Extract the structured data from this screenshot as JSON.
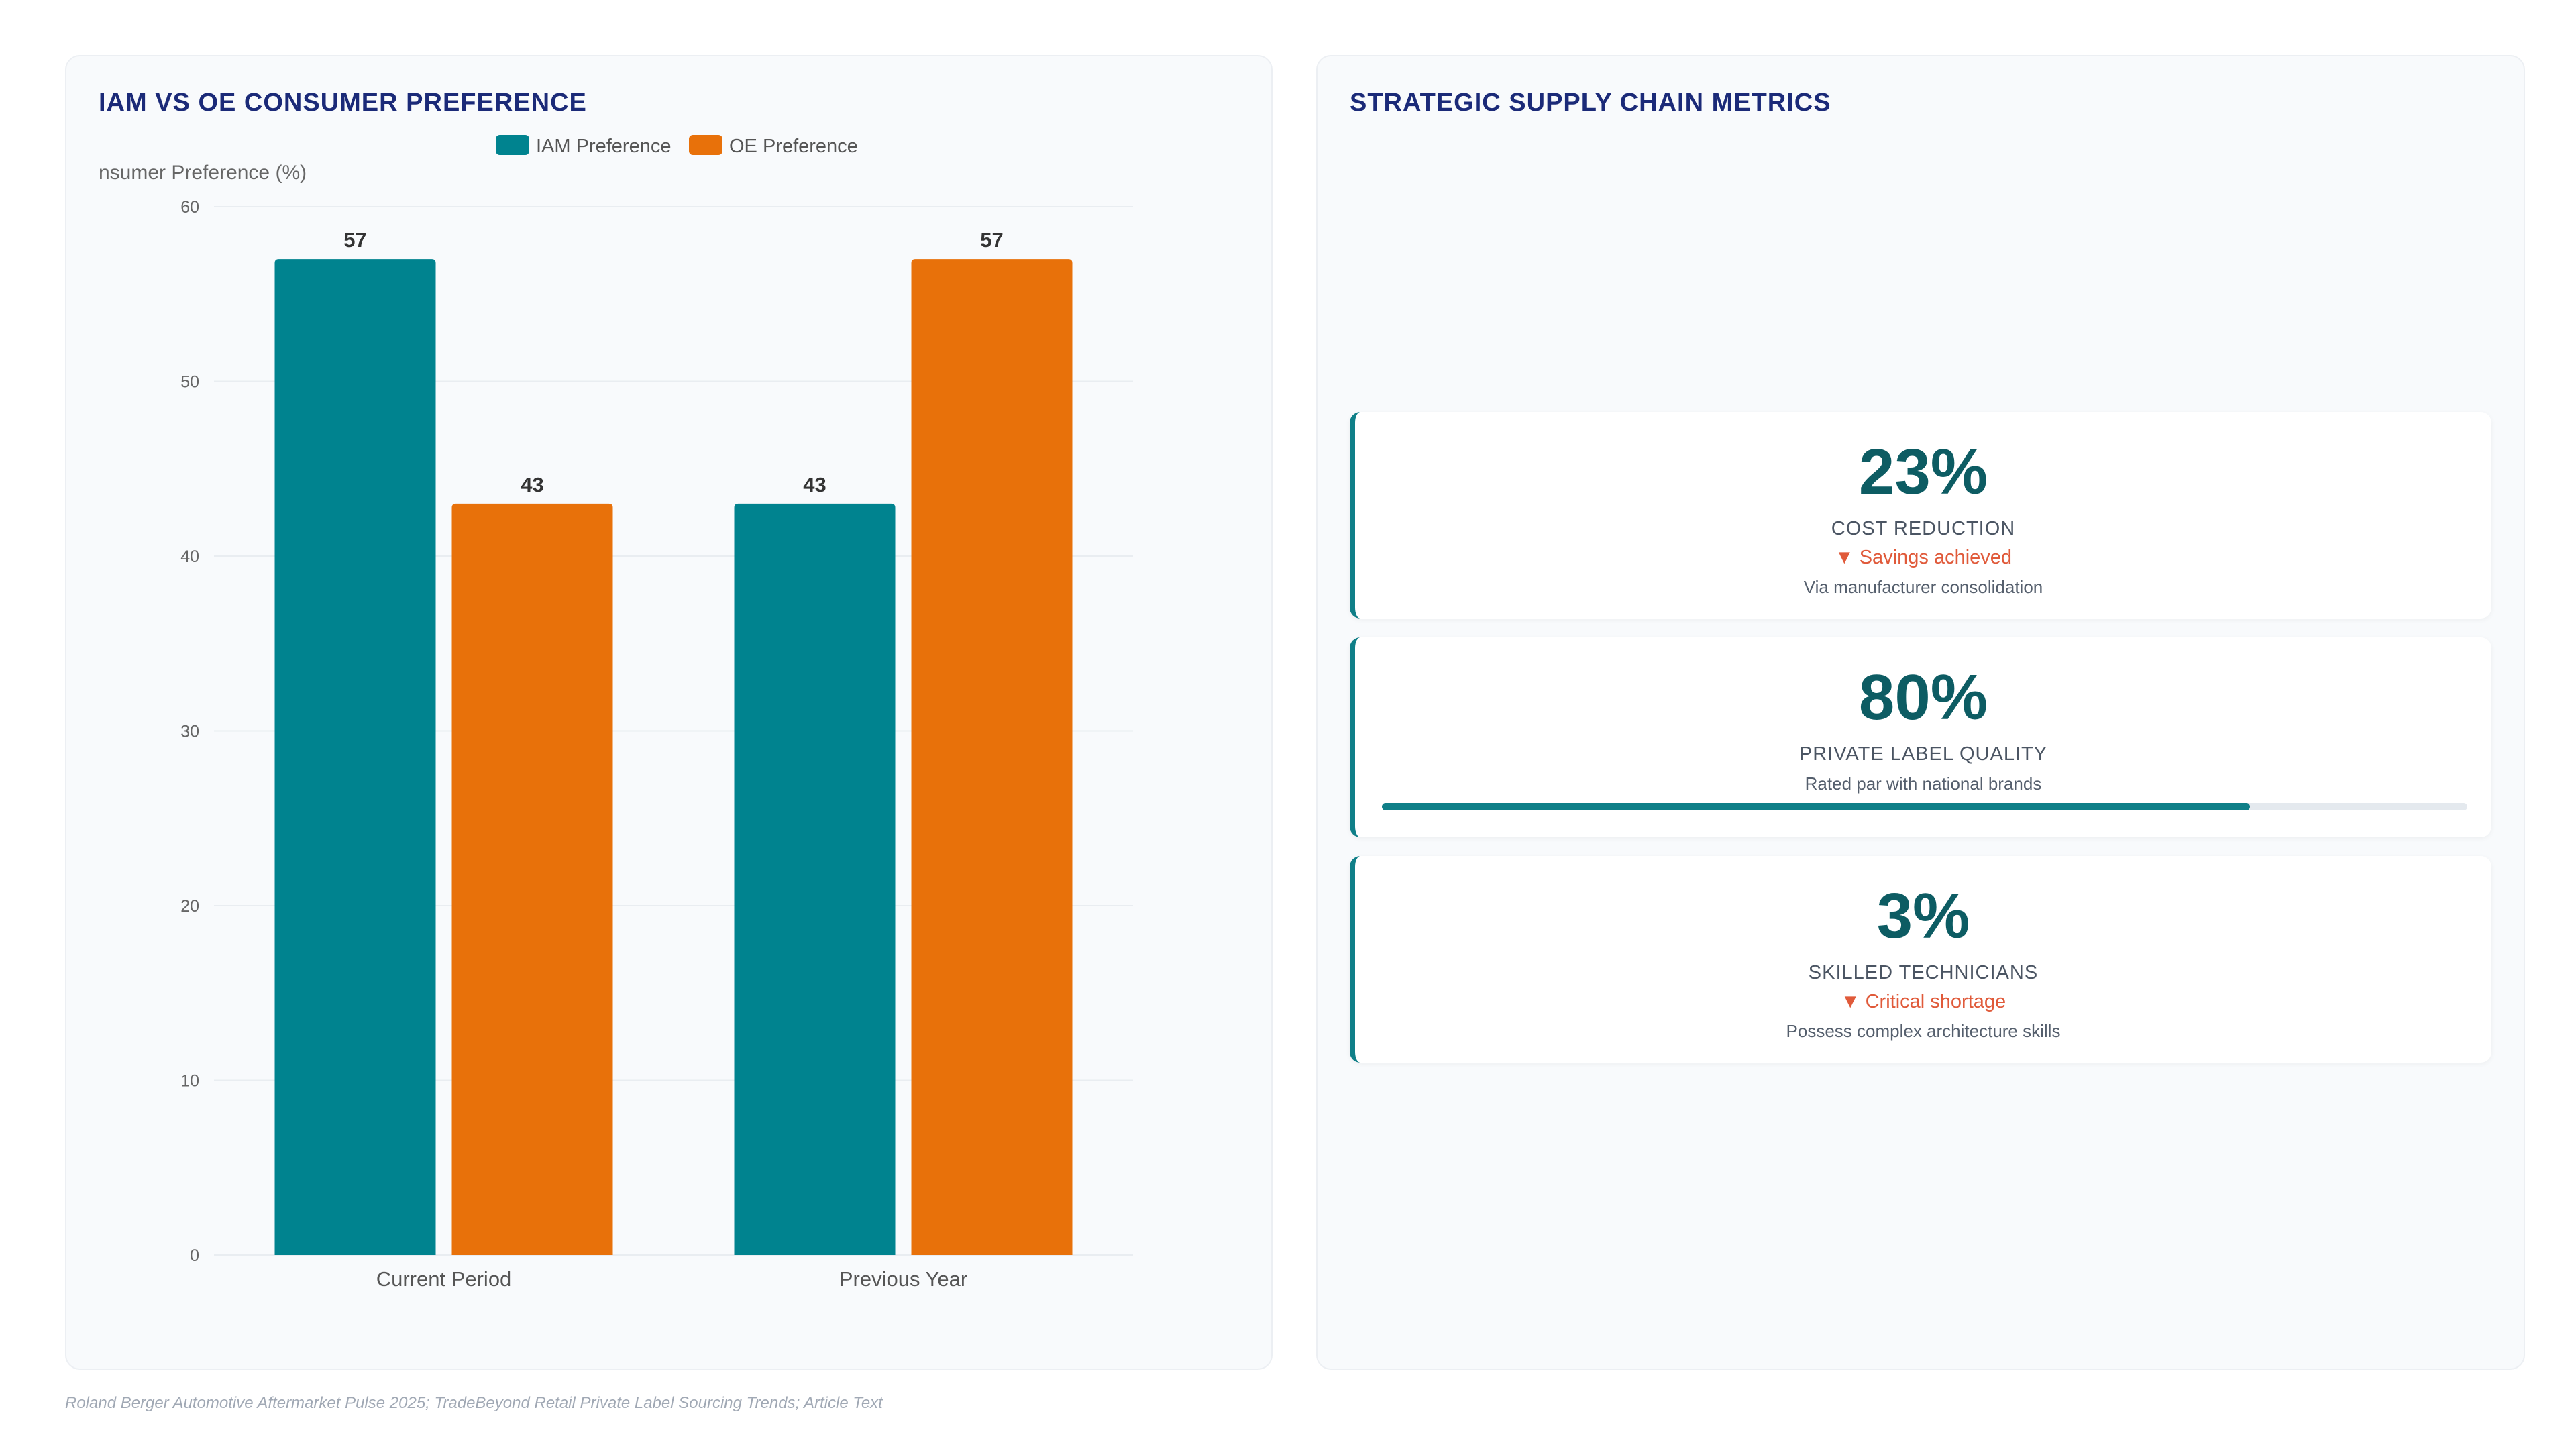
{
  "left_panel": {
    "title": "IAM VS OE CONSUMER PREFERENCE"
  },
  "chart_data": {
    "type": "bar",
    "title": "IAM VS OE CONSUMER PREFERENCE",
    "categories": [
      "Current Period",
      "Previous Year"
    ],
    "series": [
      {
        "name": "IAM Preference",
        "values": [
          57,
          43
        ],
        "color": "#00838f"
      },
      {
        "name": "OE Preference",
        "values": [
          43,
          57
        ],
        "color": "#e8710a"
      }
    ],
    "xlabel": "",
    "ylabel": "Consumer Preference (%)",
    "ylim": [
      0,
      60
    ],
    "yticks": [
      0,
      10,
      20,
      30,
      40,
      50,
      60
    ],
    "grid": true,
    "legend_position": "top-center",
    "data_labels": true
  },
  "right_panel": {
    "title": "STRATEGIC SUPPLY CHAIN METRICS",
    "cards": [
      {
        "value": "23%",
        "label": "COST REDUCTION",
        "trend": "▼ Savings achieved",
        "description": "Via manufacturer consolidation"
      },
      {
        "value": "80%",
        "label": "PRIVATE LABEL QUALITY",
        "description": "Rated par with national brands",
        "progress": 80
      },
      {
        "value": "3%",
        "label": "SKILLED TECHNICIANS",
        "trend": "▼ Critical shortage",
        "description": "Possess complex architecture skills"
      }
    ]
  },
  "footer": {
    "source": "Roland Berger Automotive Aftermarket Pulse 2025; TradeBeyond Retail Private Label Sourcing Trends; Article Text"
  },
  "colors": {
    "accent": "#0d5c63",
    "iam": "#00838f",
    "oe": "#e8710a",
    "trend_down": "#e05a3a",
    "title": "#1b2a78"
  }
}
